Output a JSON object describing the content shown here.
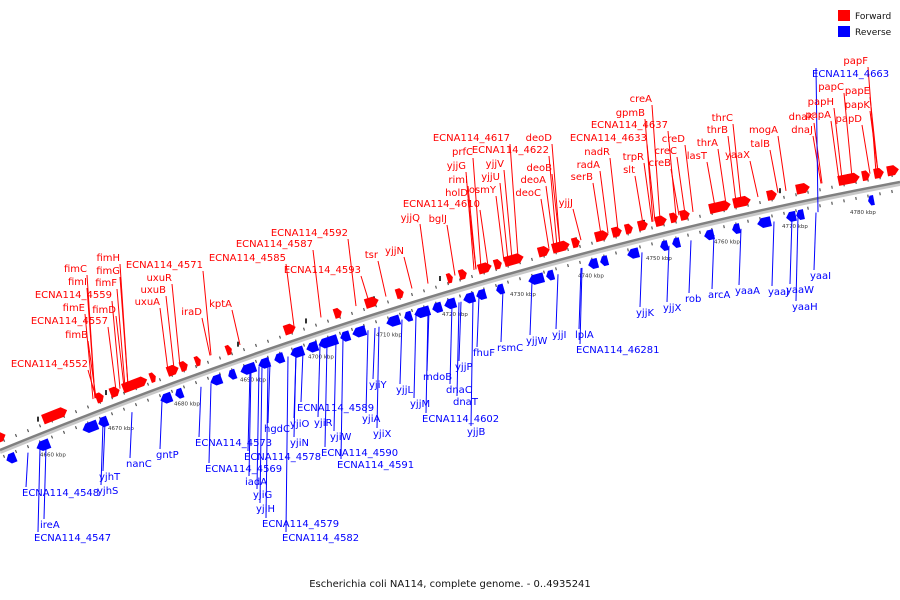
{
  "caption": "Escherichia coli NA114, complete genome. - 0..4935241",
  "legend": [
    {
      "label": "Forward",
      "color": "#ff0000"
    },
    {
      "label": "Reverse",
      "color": "#0000ff"
    }
  ],
  "colors": {
    "forward": "#ff0000",
    "reverse": "#0000ff",
    "backbone": "#808080"
  },
  "ticks": [
    "4660 kbp",
    "4670 kbp",
    "4680 kbp",
    "4690 kbp",
    "4700 kbp",
    "4710 kbp",
    "4720 kbp",
    "4730 kbp",
    "4740 kbp",
    "4750 kbp",
    "4760 kbp",
    "4770 kbp",
    "4780 kbp"
  ],
  "forward_genes": [
    "ECNA114_4552",
    "fimB",
    "ECNA114_4557",
    "fimE",
    "ECNA114_4559",
    "fimI",
    "fimC",
    "fimD",
    "fimF",
    "fimG",
    "fimH",
    "uxuA",
    "uxuB",
    "uxuR",
    "ECNA114_4571",
    "iraD",
    "kptA",
    "ECNA114_4585",
    "ECNA114_4587",
    "ECNA114_4592",
    "ECNA114_4593",
    "tsr",
    "yjjN",
    "yjjQ",
    "bglJ",
    "ECNA114_4610",
    "holD",
    "rimI",
    "yjjG",
    "prfC",
    "ECNA114_4617",
    "osmY",
    "yjjU",
    "yjjV",
    "ECNA114_4622",
    "deoC",
    "deoA",
    "deoB",
    "deoD",
    "yjjJ",
    "serB",
    "radA",
    "nadR",
    "ECNA114_4633",
    "slt",
    "trpR",
    "gpmB",
    "ECNA114_4637",
    "creA",
    "creB",
    "creC",
    "creD",
    "lasT",
    "thrA",
    "thrB",
    "thrC",
    "yaaX",
    "talB",
    "mogA",
    "dnaJ",
    "dnaK",
    "papA",
    "papH",
    "papC",
    "papD",
    "papK",
    "papE",
    "papF"
  ],
  "reverse_genes": [
    "ECNA114_4663",
    "ireA",
    "ECNA114_4547",
    "ECNA114_4548",
    "yjhS",
    "yjhT",
    "nanC",
    "gntP",
    "ECNA114_4569",
    "ECNA114_4573",
    "iadA",
    "yjiG",
    "yjiH",
    "ECNA114_4578",
    "ECNA114_4579",
    "ECNA114_4582",
    "hgdC",
    "yjiO",
    "yjiN",
    "ECNA114_4589",
    "yjiR",
    "yjiW",
    "ECNA114_4590",
    "ECNA114_4591",
    "yjiA",
    "yjiX",
    "yjiY",
    "yjjL",
    "yjjM",
    "mdoB",
    "yjjP",
    "dnaC",
    "dnaT",
    "ECNA114_4602",
    "yjjB",
    "fhuF",
    "rsmC",
    "yjjW",
    "yjjI",
    "lplA",
    "ECNA114_46281",
    "yjjK",
    "yjjX",
    "rob",
    "arcA",
    "yaaA",
    "yaaJ",
    "yaaW",
    "yaaH",
    "yaaI"
  ]
}
